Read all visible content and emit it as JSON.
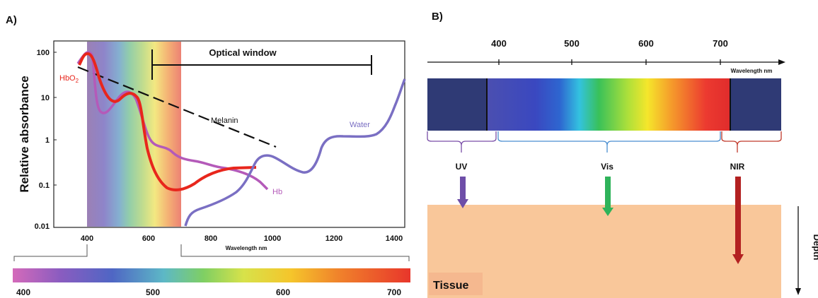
{
  "panel_a": {
    "label": "A)",
    "y_axis_label": "Relative absorbance",
    "y_ticks": [
      "100",
      "10",
      "1",
      "0.1",
      "0.01"
    ],
    "x_ticks": [
      "400",
      "600",
      "800",
      "1000",
      "1200",
      "1400"
    ],
    "x_axis_label": "Wavelength nm",
    "optical_window_label": "Optical window",
    "series": {
      "hbo2": "HbO",
      "hbo2_sub": "2",
      "hb": "Hb",
      "melanin": "Melanin",
      "water": "Water"
    },
    "colors": {
      "hbo2": "#e8261c",
      "hb": "#b45ab9",
      "melanin": "#111111",
      "water": "#7a6fc3"
    },
    "zoom_bar_ticks": [
      "400",
      "500",
      "600",
      "700"
    ]
  },
  "panel_b": {
    "label": "B)",
    "axis_ticks": [
      "400",
      "500",
      "600",
      "700"
    ],
    "axis_label": "Wavelength nm",
    "bands": {
      "uv": "UV",
      "vis": "Vis",
      "nir": "NIR"
    },
    "band_colors": {
      "uv": "#6e4ea8",
      "vis": "#2fb35a",
      "nir": "#b32121"
    },
    "tissue_label": "Tissue",
    "depth_label": "Depth",
    "tissue_color": "#f9c79a"
  }
}
